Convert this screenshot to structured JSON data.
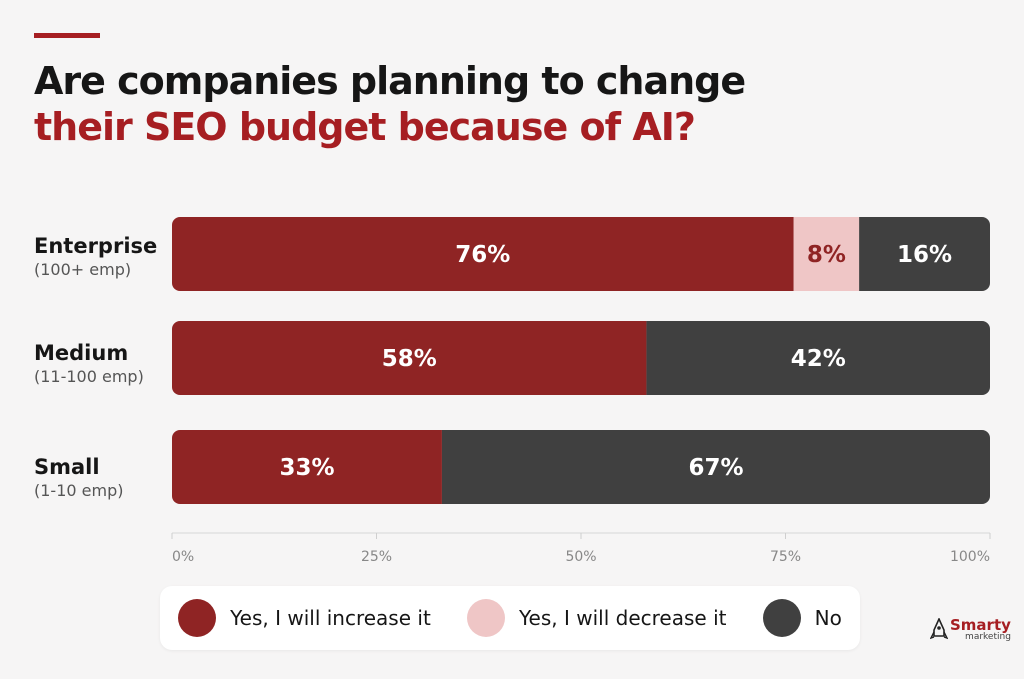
{
  "title": {
    "line1": "Are companies planning to change",
    "line2": "their SEO budget because of AI?"
  },
  "colors": {
    "increase": "#8f2424",
    "decrease": "#efc6c6",
    "no": "#404040",
    "accent": "#a61e22"
  },
  "chart_data": {
    "type": "bar",
    "orientation": "horizontal",
    "stacked": true,
    "title": "Are companies planning to change their SEO budget because of AI?",
    "categories": [
      {
        "name": "Enterprise",
        "sub": "(100+ emp)"
      },
      {
        "name": "Medium",
        "sub": "(11-100 emp)"
      },
      {
        "name": "Small",
        "sub": "(1-10 emp)"
      }
    ],
    "series": [
      {
        "name": "Yes, I will increase it",
        "values": [
          76,
          58,
          33
        ],
        "labels": [
          "76%",
          "58%",
          "33%"
        ]
      },
      {
        "name": "Yes, I will decrease it",
        "values": [
          8,
          0,
          0
        ],
        "labels": [
          "8%",
          "",
          ""
        ]
      },
      {
        "name": "No",
        "values": [
          16,
          42,
          67
        ],
        "labels": [
          "16%",
          "42%",
          "67%"
        ]
      }
    ],
    "xlim": [
      0,
      100
    ],
    "xticks": [
      "0%",
      "25%",
      "50%",
      "75%",
      "100%"
    ],
    "legend_position": "bottom",
    "grid": false
  },
  "legend": {
    "items": [
      {
        "label": "Yes, I will increase it",
        "color": "#8f2424"
      },
      {
        "label": "Yes, I will decrease it",
        "color": "#efc6c6"
      },
      {
        "label": "No",
        "color": "#404040"
      }
    ]
  },
  "brand": {
    "name": "Smarty",
    "sub": "marketing",
    "icon": "rocket-logo"
  }
}
